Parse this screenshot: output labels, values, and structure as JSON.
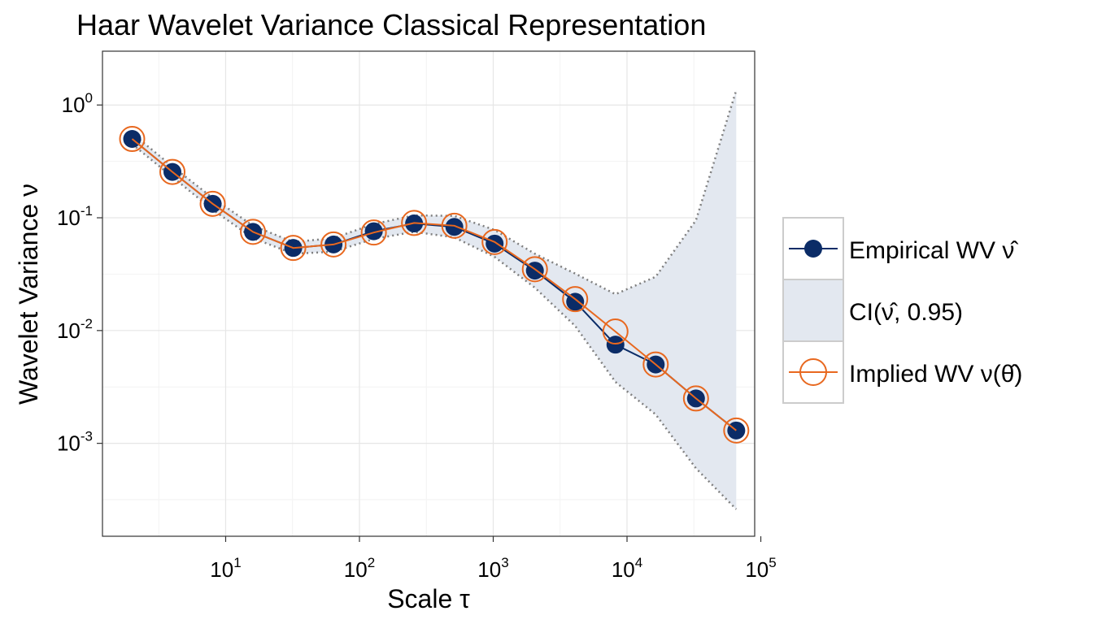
{
  "chart_data": {
    "type": "line",
    "title": "Haar Wavelet Variance Classical Representation",
    "xlabel": "Scale τ",
    "ylabel": "Wavelet Variance ν",
    "x_scale": "log10",
    "y_scale": "log10",
    "xlim": [
      1.2,
      90000
    ],
    "ylim": [
      0.00015,
      3.0
    ],
    "x_ticks": [
      {
        "value": 10,
        "base": "10",
        "exp": "1"
      },
      {
        "value": 100,
        "base": "10",
        "exp": "2"
      },
      {
        "value": 1000,
        "base": "10",
        "exp": "3"
      },
      {
        "value": 10000,
        "base": "10",
        "exp": "4"
      },
      {
        "value": 100000,
        "base": "10",
        "exp": "5"
      }
    ],
    "y_ticks": [
      {
        "value": 1,
        "base": "10",
        "exp": "0"
      },
      {
        "value": 0.1,
        "base": "10",
        "exp": "-1"
      },
      {
        "value": 0.01,
        "base": "10",
        "exp": "-2"
      },
      {
        "value": 0.001,
        "base": "10",
        "exp": "-3"
      }
    ],
    "grid": true,
    "legend_position": "right",
    "x": [
      2,
      4,
      8,
      16,
      32,
      64,
      128,
      256,
      512,
      1024,
      2048,
      4096,
      8192,
      16384,
      32768,
      65536
    ],
    "series": [
      {
        "name": "Empirical WV ν̂",
        "kind": "line-points",
        "color": "#0b2c67",
        "values": [
          0.5,
          0.255,
          0.133,
          0.075,
          0.054,
          0.058,
          0.076,
          0.089,
          0.083,
          0.059,
          0.034,
          0.018,
          0.0075,
          0.005,
          0.0025,
          0.0013
        ]
      },
      {
        "name": "CI(ν̂, 0.95)",
        "kind": "band",
        "color": "#e3e8f0",
        "border_color": "#7f7f7f",
        "lower": [
          0.45,
          0.23,
          0.118,
          0.066,
          0.048,
          0.05,
          0.065,
          0.075,
          0.067,
          0.045,
          0.024,
          0.011,
          0.0035,
          0.0018,
          0.0006,
          0.00026
        ],
        "upper": [
          0.56,
          0.285,
          0.15,
          0.085,
          0.061,
          0.066,
          0.088,
          0.105,
          0.104,
          0.078,
          0.048,
          0.032,
          0.021,
          0.03,
          0.095,
          1.35
        ]
      },
      {
        "name": "Implied WV ν(θ̂)",
        "kind": "line-open-points",
        "color": "#e8681f",
        "values": [
          0.5,
          0.255,
          0.133,
          0.075,
          0.054,
          0.058,
          0.074,
          0.09,
          0.085,
          0.061,
          0.035,
          0.019,
          0.0098,
          0.005,
          0.0025,
          0.0013
        ]
      }
    ]
  }
}
